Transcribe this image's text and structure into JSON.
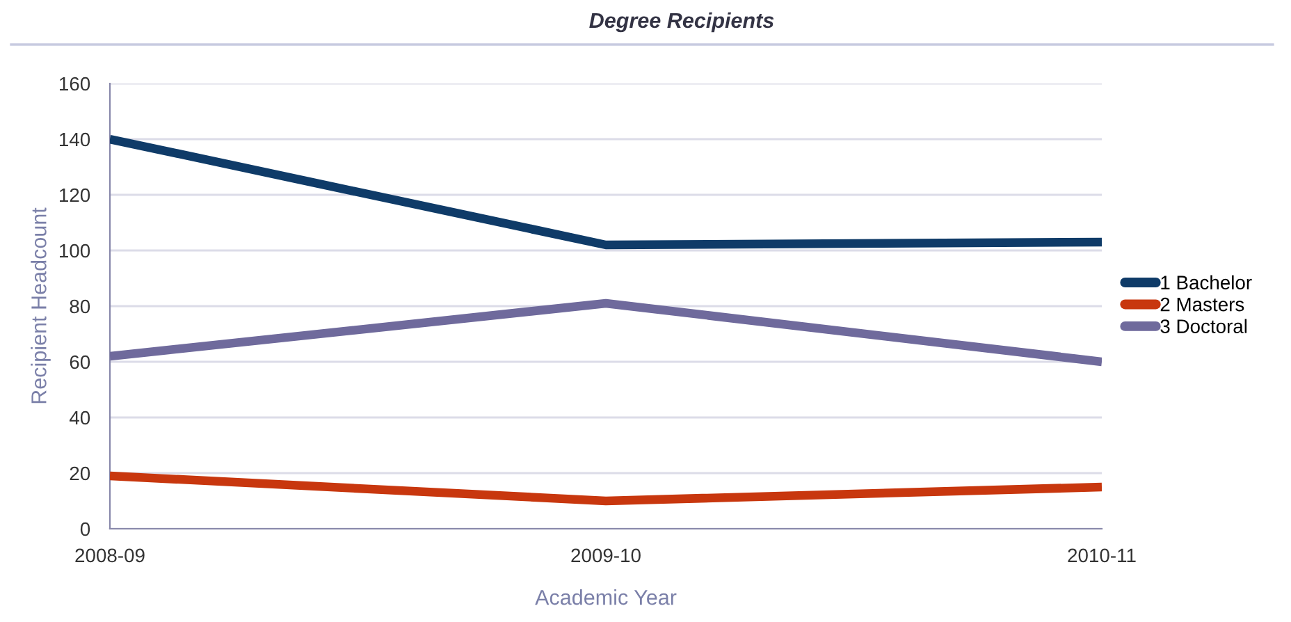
{
  "chart_data": {
    "type": "line",
    "title": "Degree Recipients",
    "xlabel": "Academic Year",
    "ylabel": "Recipient Headcount",
    "categories": [
      "2008-09",
      "2009-10",
      "2010-11"
    ],
    "series": [
      {
        "name": "1 Bachelor",
        "color": "#0f3b68",
        "values": [
          140,
          102,
          103
        ]
      },
      {
        "name": "2 Masters",
        "color": "#c8370e",
        "values": [
          19,
          10,
          15
        ]
      },
      {
        "name": "3 Doctoral",
        "color": "#6f6a9c",
        "values": [
          62,
          81,
          60
        ]
      }
    ],
    "ylim": [
      0,
      160
    ],
    "yticks": [
      0,
      20,
      40,
      60,
      80,
      100,
      120,
      140,
      160
    ],
    "grid": "y",
    "legend": "right",
    "marker": "none",
    "line_style": "solid"
  }
}
